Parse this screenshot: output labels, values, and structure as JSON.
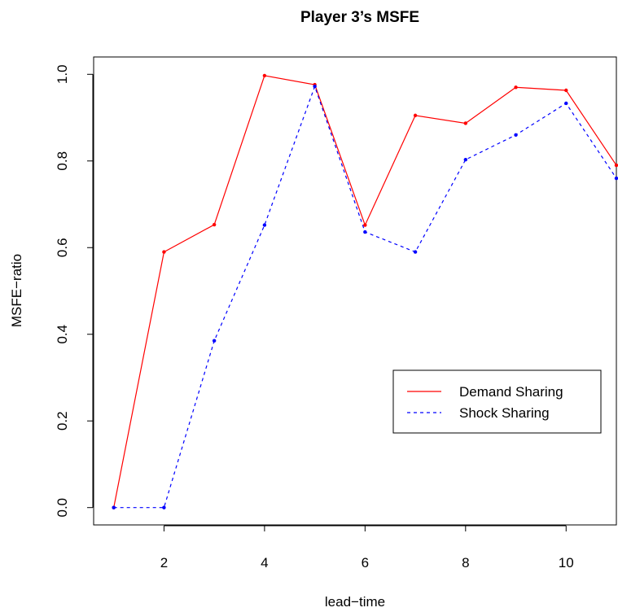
{
  "chart_data": {
    "type": "line",
    "title": "Player 3’s MSFE",
    "xlabel": "lead−time",
    "ylabel": "MSFE−ratio",
    "x": [
      1,
      2,
      3,
      4,
      5,
      6,
      7,
      8,
      9,
      10,
      11
    ],
    "xlim": [
      0.6,
      11
    ],
    "ylim": [
      -0.04,
      1.04
    ],
    "xticks": [
      2,
      4,
      6,
      8,
      10
    ],
    "xtick_labels": [
      "2",
      "4",
      "6",
      "8",
      "10"
    ],
    "yticks": [
      0.0,
      0.2,
      0.4,
      0.6,
      0.8,
      1.0
    ],
    "ytick_labels": [
      "0.0",
      "0.2",
      "0.4",
      "0.6",
      "0.8",
      "1.0"
    ],
    "grid": false,
    "legend_position": "center-right",
    "series": [
      {
        "name": "Demand Sharing",
        "color": "#ff0000",
        "dash": "solid",
        "values": [
          0.0,
          0.59,
          0.653,
          0.997,
          0.976,
          0.652,
          0.905,
          0.887,
          0.97,
          0.963,
          0.79
        ]
      },
      {
        "name": "Shock Sharing",
        "color": "#0000ff",
        "dash": "dashed",
        "values": [
          0.0,
          0.0,
          0.385,
          0.652,
          0.972,
          0.636,
          0.59,
          0.803,
          0.86,
          0.933,
          0.76
        ]
      }
    ]
  }
}
